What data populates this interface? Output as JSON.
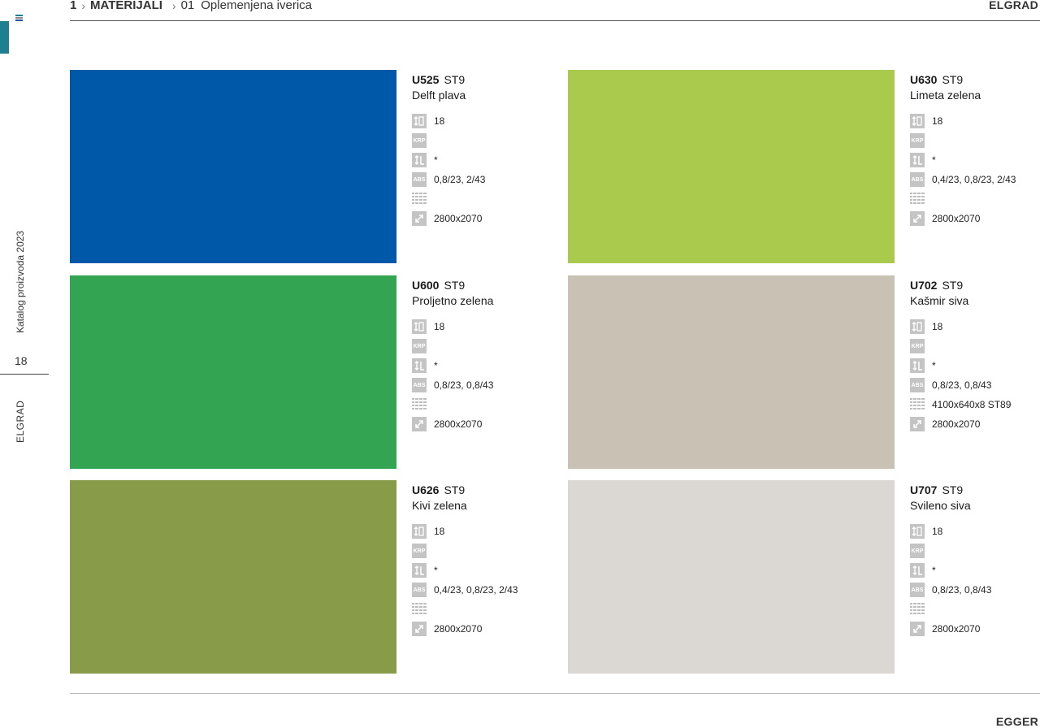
{
  "header": {
    "crumb_number": "1",
    "crumb_section": "MATERIJALI",
    "crumb_sub_number": "01",
    "crumb_sub_title": "Oplemenjena iverica",
    "brand": "ELGRAD"
  },
  "sidebar": {
    "catalog_label": "Katalog proizvoda 2023",
    "page_number": "18",
    "brand": "ELGRAD"
  },
  "footer": {
    "brand": "EGGER"
  },
  "icons": {
    "thickness": "thickness-icon",
    "krp": "KRP",
    "grain": "grain-direction-icon",
    "abs": "ABS",
    "worktop": "worktop-pattern-icon",
    "size": "board-size-icon"
  },
  "products": [
    {
      "code": "U525",
      "texture": "ST9",
      "name": "Delft plava",
      "color": "#0058a8",
      "thickness": "18",
      "krp": "",
      "grain": "*",
      "abs": "0,8/23, 2/43",
      "worktop": "",
      "size": "2800x2070"
    },
    {
      "code": "U630",
      "texture": "ST9",
      "name": "Limeta zelena",
      "color": "#aaca4e",
      "thickness": "18",
      "krp": "",
      "grain": "*",
      "abs": "0,4/23, 0,8/23, 2/43",
      "worktop": "",
      "size": "2800x2070"
    },
    {
      "code": "U600",
      "texture": "ST9",
      "name": "Proljetno zelena",
      "color": "#33a452",
      "thickness": "18",
      "krp": "",
      "grain": "*",
      "abs": "0,8/23, 0,8/43",
      "worktop": "",
      "size": "2800x2070"
    },
    {
      "code": "U702",
      "texture": "ST9",
      "name": "Kašmir siva",
      "color": "#c9c1b4",
      "thickness": "18",
      "krp": "",
      "grain": "*",
      "abs": "0,8/23, 0,8/43",
      "worktop": "4100x640x8 ST89",
      "size": "2800x2070"
    },
    {
      "code": "U626",
      "texture": "ST9",
      "name": "Kivi zelena",
      "color": "#889b48",
      "thickness": "18",
      "krp": "",
      "grain": "*",
      "abs": "0,4/23, 0,8/23, 2/43",
      "worktop": "",
      "size": "2800x2070"
    },
    {
      "code": "U707",
      "texture": "ST9",
      "name": "Svileno siva",
      "color": "#dbd8d3",
      "thickness": "18",
      "krp": "",
      "grain": "*",
      "abs": "0,8/23, 0,8/43",
      "worktop": "",
      "size": "2800x2070"
    }
  ]
}
